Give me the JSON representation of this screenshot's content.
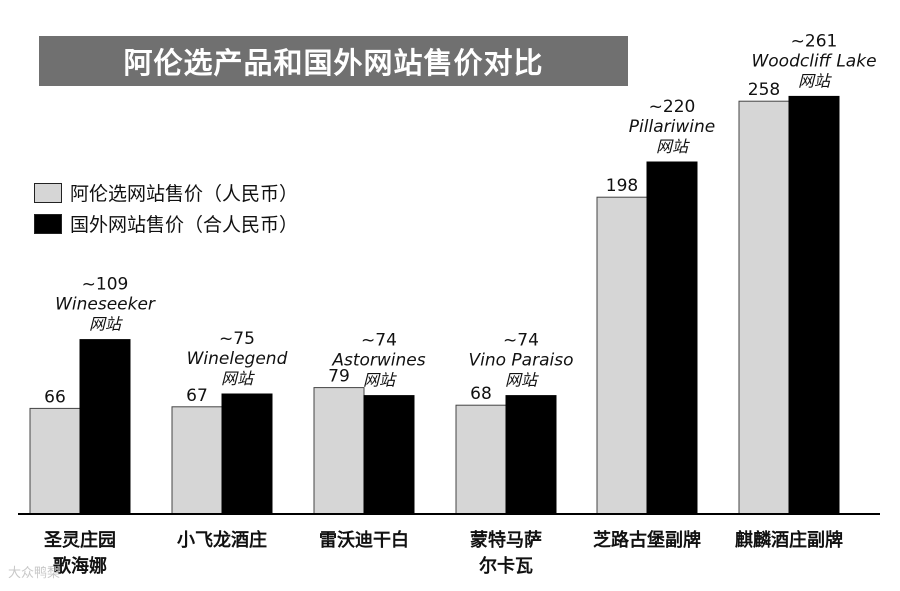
{
  "chart_data": {
    "type": "bar",
    "title": "阿伦选产品和国外网站售价对比",
    "categories": [
      [
        "圣灵庄园",
        "歌海娜"
      ],
      [
        "小飞龙酒庄"
      ],
      [
        "雷沃迪干白"
      ],
      [
        "蒙特马萨",
        "尔卡瓦"
      ],
      [
        "芝路古堡副牌"
      ],
      [
        "麒麟酒庄副牌"
      ]
    ],
    "series": [
      {
        "name": "阿伦选网站售价（人民币）",
        "values": [
          66,
          67,
          79,
          68,
          198,
          258
        ],
        "labels": [
          "66",
          "67",
          "79",
          "68",
          "198",
          "258"
        ]
      },
      {
        "name": "国外网站售价（合人民币）",
        "values": [
          109,
          75,
          74,
          74,
          220,
          261
        ],
        "labels": [
          "~109",
          "~75",
          "~74",
          "~74",
          "~220",
          "~261"
        ]
      }
    ],
    "annotations": [
      {
        "site": "Wineseeker",
        "suffix": "网站"
      },
      {
        "site": "Winelegend",
        "suffix": "网站"
      },
      {
        "site": "Astorwines",
        "suffix": "网站"
      },
      {
        "site": "Vino Paraiso",
        "suffix": "网站"
      },
      {
        "site": "Pillariwine",
        "suffix": "网站"
      },
      {
        "site": "Woodcliff Lake",
        "suffix": "网站"
      }
    ],
    "colors": {
      "series1": "#d6d6d6",
      "series2": "#000000",
      "title_band": "#707070"
    },
    "legend_position": "left-middle",
    "grid": false,
    "ylim": [
      0,
      270
    ]
  },
  "watermark": "大众鸭梨"
}
